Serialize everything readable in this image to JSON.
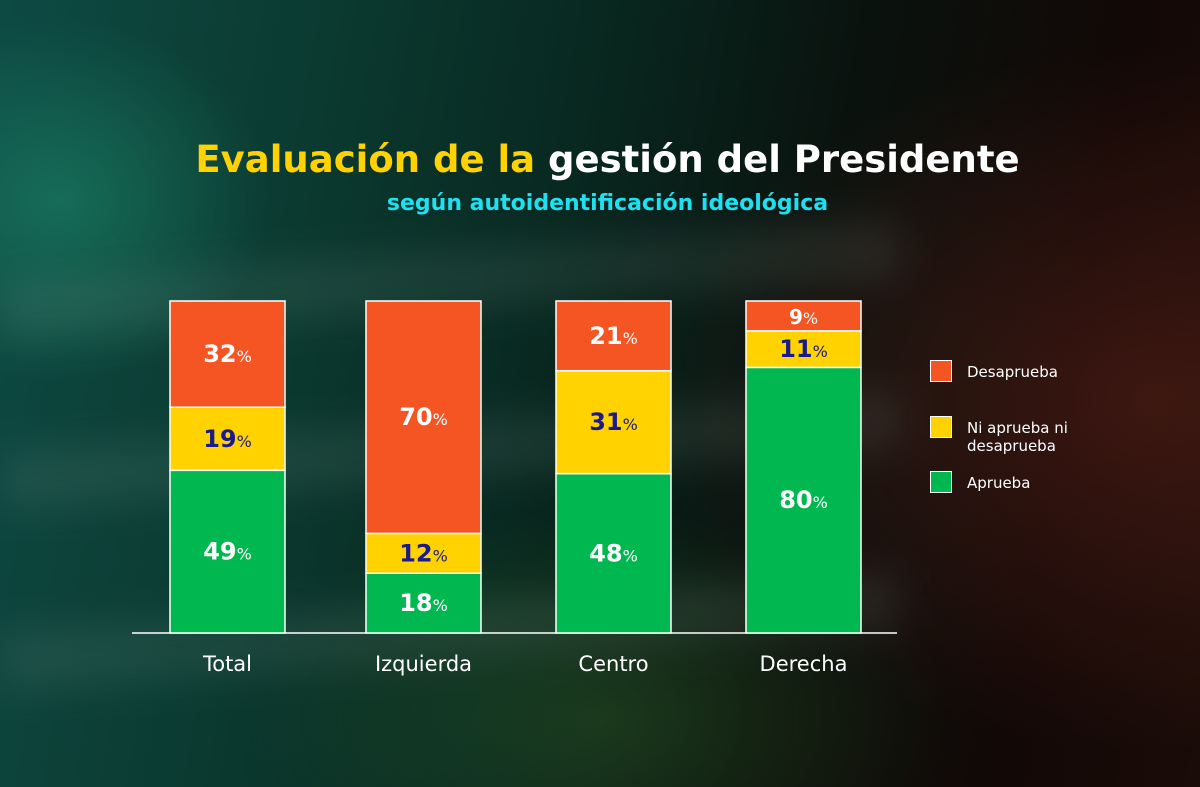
{
  "chart_data": {
    "type": "bar",
    "stacked": true,
    "percent": true,
    "title_part1": "Evaluación de la",
    "title_part2": "gestión del Presidente",
    "subtitle": "según autoidentificación ideológica",
    "categories": [
      "Total",
      "Izquierda",
      "Centro",
      "Derecha"
    ],
    "series": [
      {
        "name": "Aprueba",
        "color": "#00b84f",
        "label_color": "#ffffff",
        "values": [
          49,
          18,
          48,
          80
        ]
      },
      {
        "name": "Ni aprueba ni desaprueba",
        "color": "#ffd200",
        "label_color": "#1a1a8c",
        "values": [
          19,
          12,
          31,
          11
        ]
      },
      {
        "name": "Desaprueba",
        "color": "#f55423",
        "label_color": "#ffffff",
        "values": [
          32,
          70,
          21,
          9
        ]
      }
    ],
    "ylim": [
      0,
      100
    ],
    "grid": false,
    "legend_placement": "right"
  }
}
